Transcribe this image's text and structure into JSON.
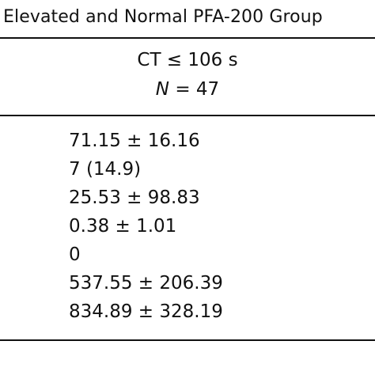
{
  "table": {
    "caption": "Elevated and Normal PFA-200 Group",
    "column_header": {
      "line1": "CT ≤ 106 s",
      "n_symbol": "N",
      "n_equals": " = ",
      "n_value": "47"
    },
    "rows": [
      "71.15 ± 16.16",
      "7 (14.9)",
      "25.53 ± 98.83",
      "0.38 ± 1.01",
      "0",
      "537.55 ± 206.39",
      "834.89 ± 328.19"
    ]
  }
}
